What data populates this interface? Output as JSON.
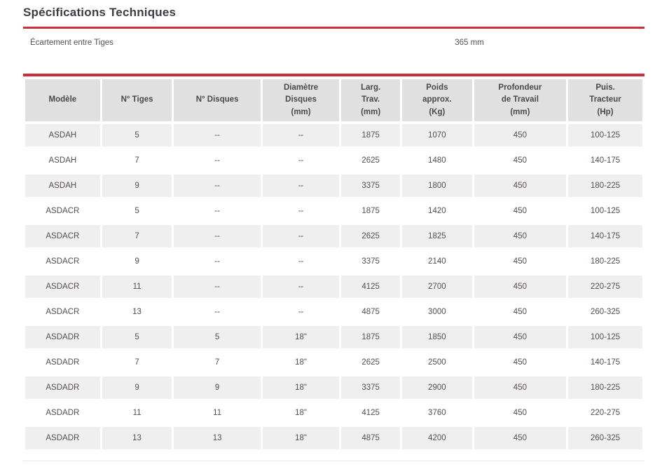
{
  "page": {
    "title": "Spécifications Techniques"
  },
  "spec_bar": {
    "label": "Écartement entre Tiges",
    "value": "365 mm"
  },
  "table": {
    "columns": [
      "Modèle",
      "N° Tiges",
      "N° Disques",
      "Diamètre\nDisques\n(mm)",
      "Larg.\nTrav.\n(mm)",
      "Poids\napprox.\n(Kg)",
      "Profondeur\nde Travail\n(mm)",
      "Puis.\nTracteur\n(Hp)"
    ],
    "rows": [
      [
        "ASDAH",
        "5",
        "--",
        "--",
        "1875",
        "1070",
        "450",
        "100-125"
      ],
      [
        "ASDAH",
        "7",
        "--",
        "--",
        "2625",
        "1480",
        "450",
        "140-175"
      ],
      [
        "ASDAH",
        "9",
        "--",
        "--",
        "3375",
        "1800",
        "450",
        "180-225"
      ],
      [
        "ASDACR",
        "5",
        "--",
        "--",
        "1875",
        "1420",
        "450",
        "100-125"
      ],
      [
        "ASDACR",
        "7",
        "--",
        "--",
        "2625",
        "1825",
        "450",
        "140-175"
      ],
      [
        "ASDACR",
        "9",
        "--",
        "--",
        "3375",
        "2140",
        "450",
        "180-225"
      ],
      [
        "ASDACR",
        "11",
        "--",
        "--",
        "4125",
        "2700",
        "450",
        "220-275"
      ],
      [
        "ASDACR",
        "13",
        "--",
        "--",
        "4875",
        "3000",
        "450",
        "260-325"
      ],
      [
        "ASDADR",
        "5",
        "5",
        "18\"",
        "1875",
        "1850",
        "450",
        "100-125"
      ],
      [
        "ASDADR",
        "7",
        "7",
        "18\"",
        "2625",
        "2500",
        "450",
        "140-175"
      ],
      [
        "ASDADR",
        "9",
        "9",
        "18\"",
        "3375",
        "2900",
        "450",
        "180-225"
      ],
      [
        "ASDADR",
        "11",
        "11",
        "18\"",
        "4125",
        "3760",
        "450",
        "220-275"
      ],
      [
        "ASDADR",
        "13",
        "13",
        "18\"",
        "4875",
        "4200",
        "450",
        "260-325"
      ]
    ]
  },
  "colors": {
    "accent_red": "#c9303a",
    "header_cell_bg": "#e0e0e0",
    "row_alt_bg": "#efefef",
    "body_text": "#55504e",
    "title_text": "#3b3f44"
  }
}
